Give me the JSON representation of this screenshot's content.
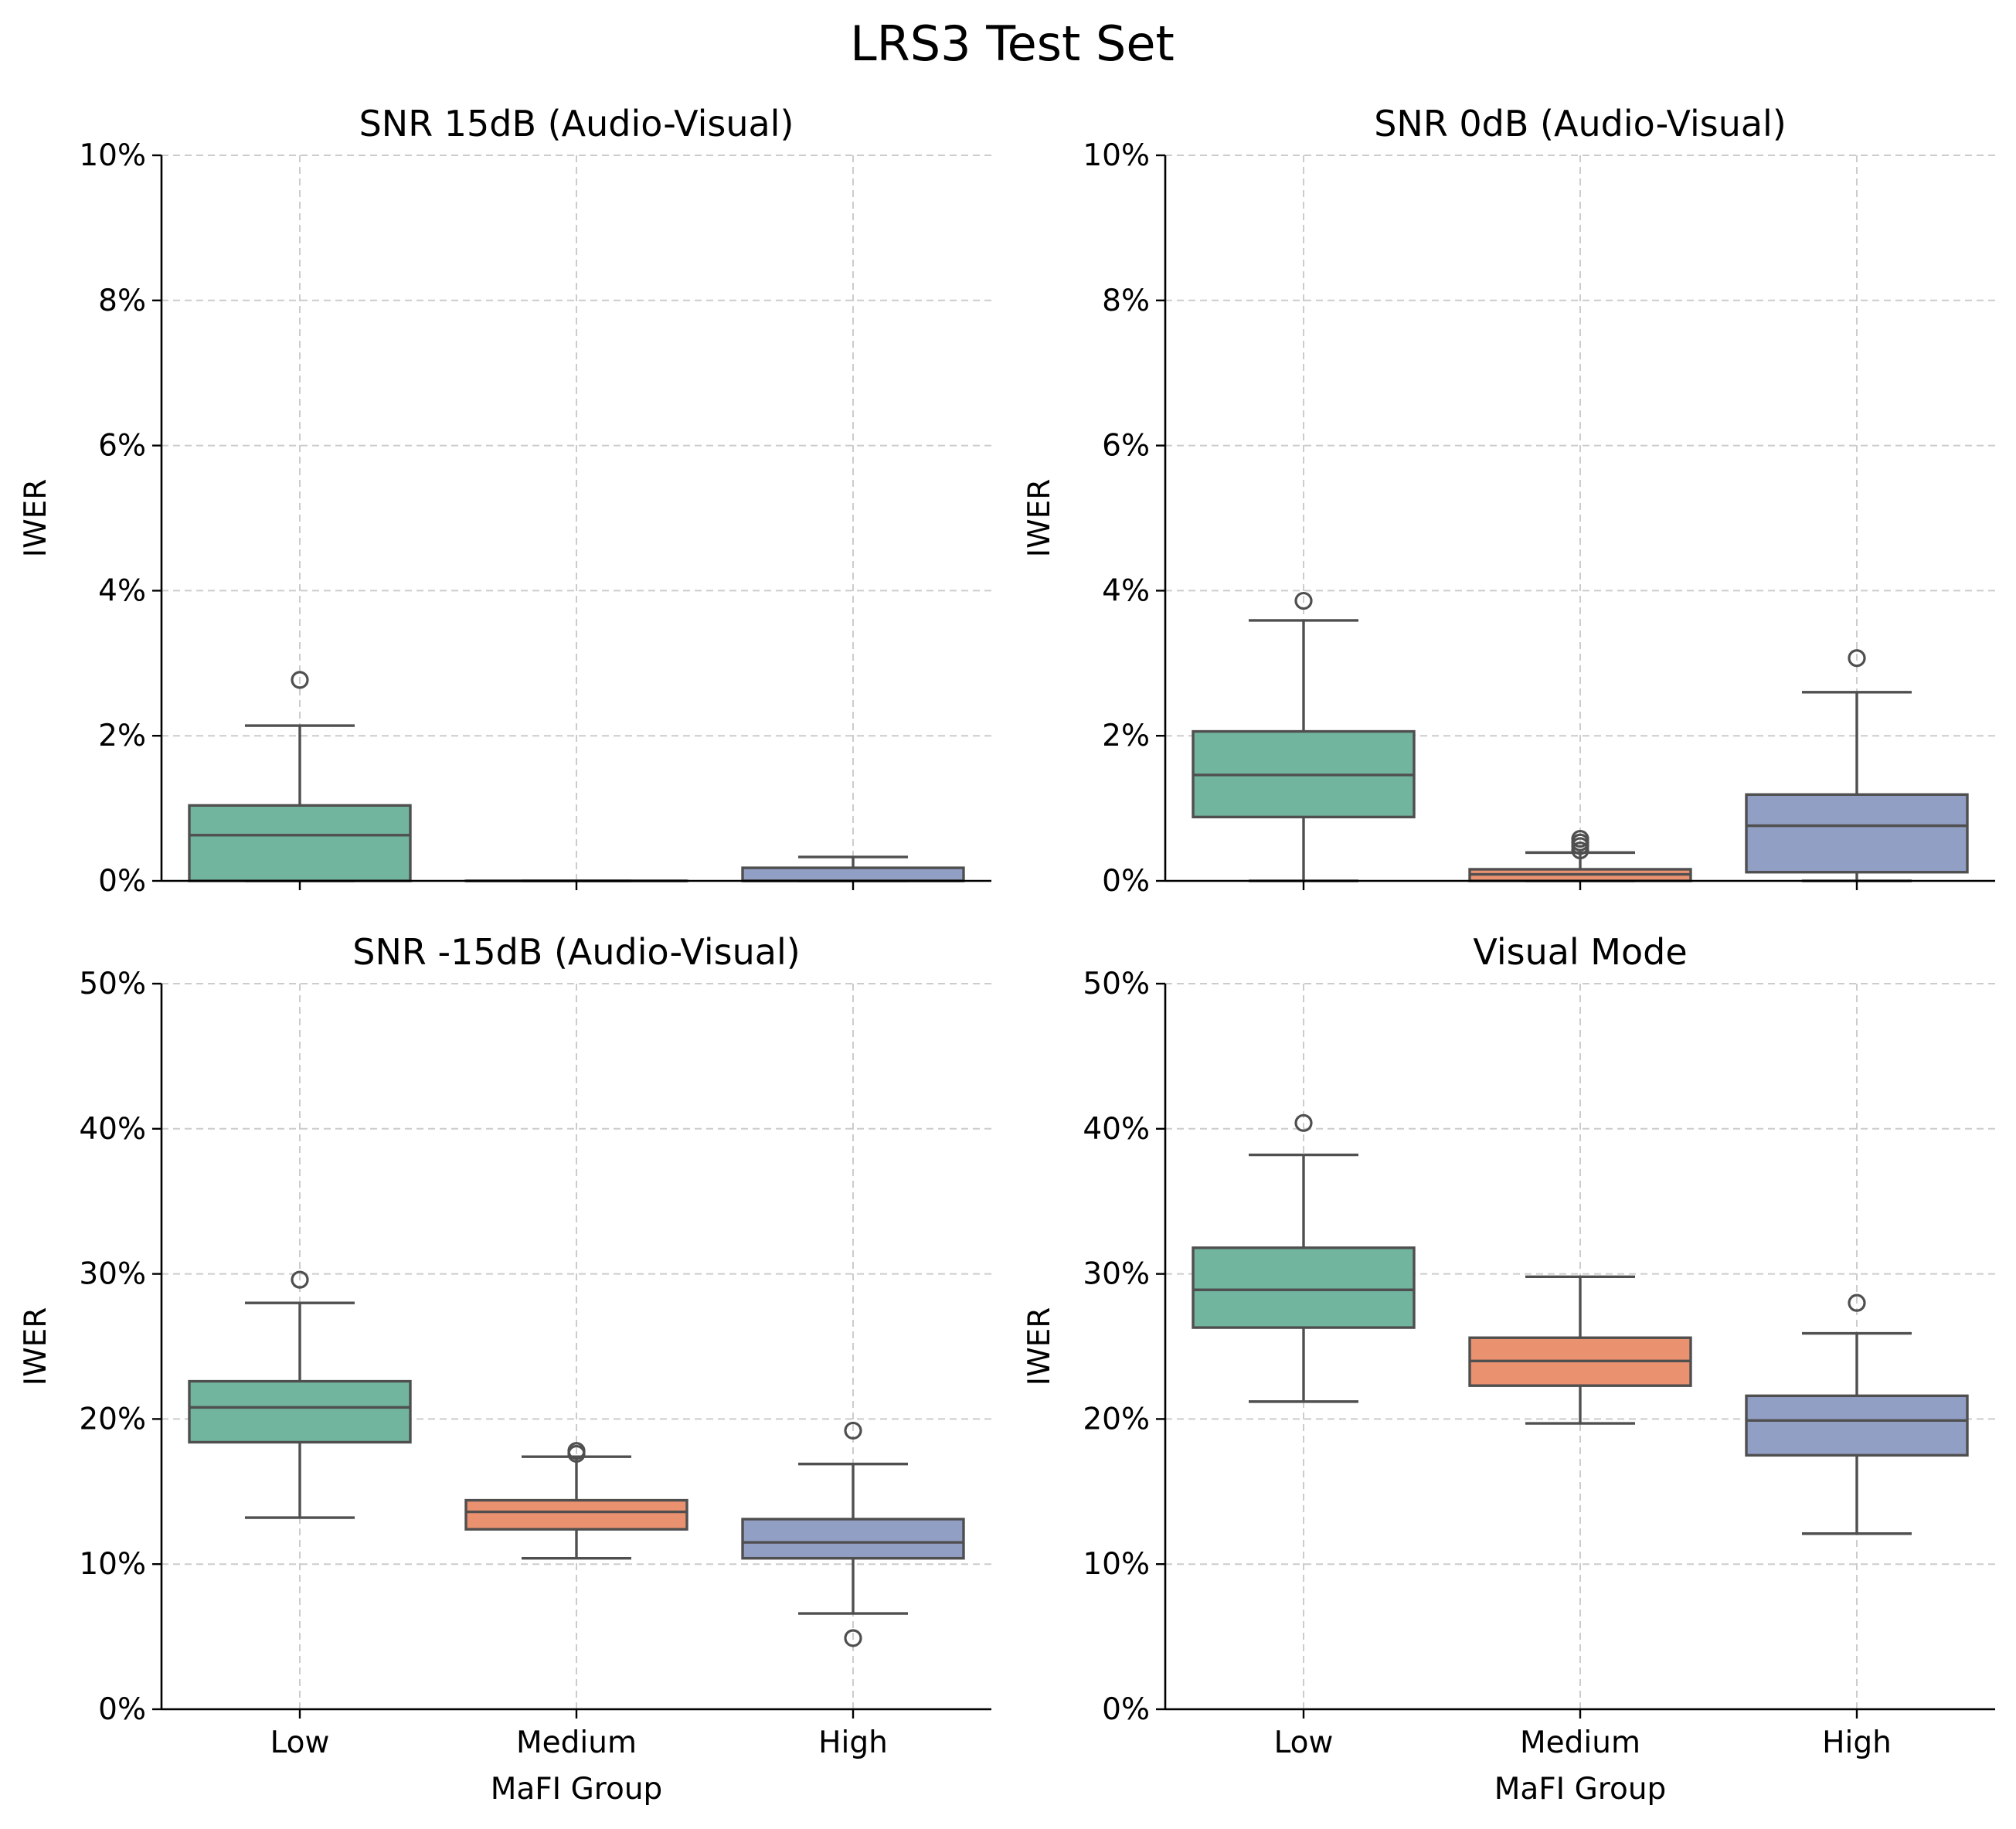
{
  "figure": {
    "title": "LRS3 Test Set"
  },
  "colors": {
    "Low": "#72b59f",
    "Medium": "#ea9170",
    "High": "#929fc4"
  },
  "chart_data": [
    {
      "type": "box",
      "title": "SNR 15dB (Audio-Visual)",
      "xlabel": "",
      "ylabel": "IWER",
      "ylim": [
        0,
        10
      ],
      "yticks": [
        "0%",
        "2%",
        "4%",
        "6%",
        "8%",
        "10%"
      ],
      "categories": [
        "Low",
        "Medium",
        "High"
      ],
      "show_xticklabels": false,
      "grid": true,
      "boxes": [
        {
          "group": "Low",
          "whislo": 0,
          "q1": 0,
          "med": 0.63,
          "q3": 1.04,
          "whishi": 2.14,
          "fliers": [
            2.77
          ]
        },
        {
          "group": "Medium",
          "whislo": 0,
          "q1": 0,
          "med": 0,
          "q3": 0,
          "whishi": 0,
          "fliers": []
        },
        {
          "group": "High",
          "whislo": 0,
          "q1": 0,
          "med": 0,
          "q3": 0.18,
          "whishi": 0.33,
          "fliers": []
        }
      ]
    },
    {
      "type": "box",
      "title": "SNR 0dB (Audio-Visual)",
      "xlabel": "",
      "ylabel": "IWER",
      "ylim": [
        0,
        10
      ],
      "yticks": [
        "0%",
        "2%",
        "4%",
        "6%",
        "8%",
        "10%"
      ],
      "categories": [
        "Low",
        "Medium",
        "High"
      ],
      "show_xticklabels": false,
      "grid": true,
      "boxes": [
        {
          "group": "Low",
          "whislo": 0,
          "q1": 0.88,
          "med": 1.46,
          "q3": 2.06,
          "whishi": 3.59,
          "fliers": [
            3.86
          ]
        },
        {
          "group": "Medium",
          "whislo": 0,
          "q1": 0,
          "med": 0.09,
          "q3": 0.16,
          "whishi": 0.39,
          "fliers": [
            0.42,
            0.48,
            0.53,
            0.58
          ]
        },
        {
          "group": "High",
          "whislo": 0,
          "q1": 0.12,
          "med": 0.76,
          "q3": 1.19,
          "whishi": 2.6,
          "fliers": [
            3.07
          ]
        }
      ]
    },
    {
      "type": "box",
      "title": "SNR -15dB (Audio-Visual)",
      "xlabel": "MaFI Group",
      "ylabel": "IWER",
      "ylim": [
        0,
        50
      ],
      "yticks": [
        "0%",
        "10%",
        "20%",
        "30%",
        "40%",
        "50%"
      ],
      "categories": [
        "Low",
        "Medium",
        "High"
      ],
      "show_xticklabels": true,
      "grid": true,
      "boxes": [
        {
          "group": "Low",
          "whislo": 13.2,
          "q1": 18.4,
          "med": 20.8,
          "q3": 22.6,
          "whishi": 28.0,
          "fliers": [
            29.6
          ]
        },
        {
          "group": "Medium",
          "whislo": 10.4,
          "q1": 12.4,
          "med": 13.6,
          "q3": 14.4,
          "whishi": 17.4,
          "fliers": [
            17.6,
            17.8
          ]
        },
        {
          "group": "High",
          "whislo": 6.6,
          "q1": 10.4,
          "med": 11.5,
          "q3": 13.1,
          "whishi": 16.9,
          "fliers": [
            19.2,
            4.9
          ]
        }
      ]
    },
    {
      "type": "box",
      "title": "Visual Mode",
      "xlabel": "MaFI Group",
      "ylabel": "IWER",
      "ylim": [
        0,
        50
      ],
      "yticks": [
        "0%",
        "10%",
        "20%",
        "30%",
        "40%",
        "50%"
      ],
      "categories": [
        "Low",
        "Medium",
        "High"
      ],
      "show_xticklabels": true,
      "grid": true,
      "boxes": [
        {
          "group": "Low",
          "whislo": 21.2,
          "q1": 26.3,
          "med": 28.9,
          "q3": 31.8,
          "whishi": 38.2,
          "fliers": [
            40.4
          ]
        },
        {
          "group": "Medium",
          "whislo": 19.7,
          "q1": 22.3,
          "med": 24.0,
          "q3": 25.6,
          "whishi": 29.8,
          "fliers": []
        },
        {
          "group": "High",
          "whislo": 12.1,
          "q1": 17.5,
          "med": 19.9,
          "q3": 21.6,
          "whishi": 25.9,
          "fliers": [
            28.0
          ]
        }
      ]
    }
  ]
}
